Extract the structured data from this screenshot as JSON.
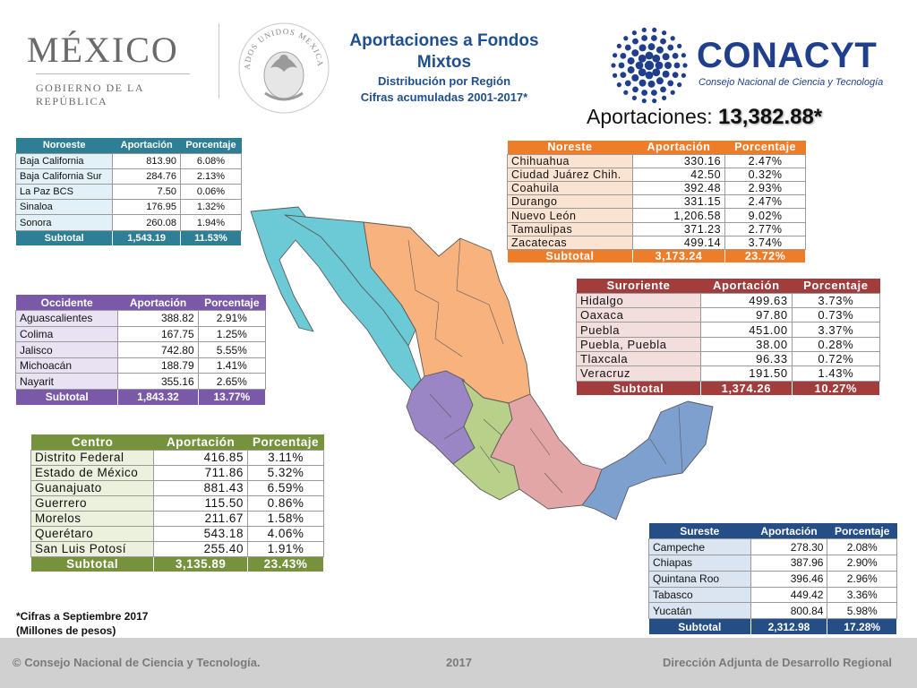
{
  "header": {
    "mexico_word": "MÉXICO",
    "mexico_sub": "GOBIERNO DE LA REPÚBLICA",
    "seal_text": "ESTADOS UNIDOS MEXICANOS",
    "title_line1": "Aportaciones a Fondos",
    "title_line2": "Mixtos",
    "subtitle_line1": "Distribución por Región",
    "subtitle_line2": "Cifras acumuladas 2001-2017*",
    "conacyt_word": "CONACYT",
    "conacyt_sub": "Consejo Nacional de Ciencia y Tecnología",
    "total_label": "Aportaciones:",
    "total_value": "13,382.88*"
  },
  "colors": {
    "noroeste": "#2e7f96",
    "noreste": "#ee7d2a",
    "occidente": "#7a5aa8",
    "suroriente": "#a23d3d",
    "centro": "#76923c",
    "sureste": "#254e86"
  },
  "tables": {
    "noroeste": {
      "headers": [
        "Noroeste",
        "Aportación",
        "Porcentaje"
      ],
      "rows": [
        [
          "Baja California",
          "813.90",
          "6.08%"
        ],
        [
          "Baja California Sur",
          "284.76",
          "2.13%"
        ],
        [
          "La Paz BCS",
          "7.50",
          "0.06%"
        ],
        [
          "Sinaloa",
          "176.95",
          "1.32%"
        ],
        [
          "Sonora",
          "260.08",
          "1.94%"
        ]
      ],
      "subtotal": [
        "Subtotal",
        "1,543.19",
        "11.53%"
      ]
    },
    "noreste": {
      "headers": [
        "Noreste",
        "Aportación",
        "Porcentaje"
      ],
      "rows": [
        [
          "Chihuahua",
          "330.16",
          "2.47%"
        ],
        [
          "Ciudad Juárez Chih.",
          "42.50",
          "0.32%"
        ],
        [
          "Coahuila",
          "392.48",
          "2.93%"
        ],
        [
          "Durango",
          "331.15",
          "2.47%"
        ],
        [
          "Nuevo León",
          "1,206.58",
          "9.02%"
        ],
        [
          "Tamaulipas",
          "371.23",
          "2.77%"
        ],
        [
          "Zacatecas",
          "499.14",
          "3.74%"
        ]
      ],
      "subtotal": [
        "Subtotal",
        "3,173.24",
        "23.72%"
      ]
    },
    "occidente": {
      "headers": [
        "Occidente",
        "Aportación",
        "Porcentaje"
      ],
      "rows": [
        [
          "Aguascalientes",
          "388.82",
          "2.91%"
        ],
        [
          "Colima",
          "167.75",
          "1.25%"
        ],
        [
          "Jalisco",
          "742.80",
          "5.55%"
        ],
        [
          "Michoacán",
          "188.79",
          "1.41%"
        ],
        [
          "Nayarit",
          "355.16",
          "2.65%"
        ]
      ],
      "subtotal": [
        "Subtotal",
        "1,843.32",
        "13.77%"
      ]
    },
    "suroriente": {
      "headers": [
        "Suroriente",
        "Aportación",
        "Porcentaje"
      ],
      "rows": [
        [
          "Hidalgo",
          "499.63",
          "3.73%"
        ],
        [
          "Oaxaca",
          "97.80",
          "0.73%"
        ],
        [
          "Puebla",
          "451.00",
          "3.37%"
        ],
        [
          "Puebla, Puebla",
          "38.00",
          "0.28%"
        ],
        [
          "Tlaxcala",
          "96.33",
          "0.72%"
        ],
        [
          "Veracruz",
          "191.50",
          "1.43%"
        ]
      ],
      "subtotal": [
        "Subtotal",
        "1,374.26",
        "10.27%"
      ]
    },
    "centro": {
      "headers": [
        "Centro",
        "Aportación",
        "Porcentaje"
      ],
      "rows": [
        [
          "Distrito Federal",
          "416.85",
          "3.11%"
        ],
        [
          "Estado de México",
          "711.86",
          "5.32%"
        ],
        [
          "Guanajuato",
          "881.43",
          "6.59%"
        ],
        [
          "Guerrero",
          "115.50",
          "0.86%"
        ],
        [
          "Morelos",
          "211.67",
          "1.58%"
        ],
        [
          "Querétaro",
          "543.18",
          "4.06%"
        ],
        [
          "San Luis Potosí",
          "255.40",
          "1.91%"
        ]
      ],
      "subtotal": [
        "Subtotal",
        "3,135.89",
        "23.43%"
      ]
    },
    "sureste": {
      "headers": [
        "Sureste",
        "Aportación",
        "Porcentaje"
      ],
      "rows": [
        [
          "Campeche",
          "278.30",
          "2.08%"
        ],
        [
          "Chiapas",
          "387.96",
          "2.90%"
        ],
        [
          "Quintana Roo",
          "396.46",
          "2.96%"
        ],
        [
          "Tabasco",
          "449.42",
          "3.36%"
        ],
        [
          "Yucatán",
          "800.84",
          "5.98%"
        ]
      ],
      "subtotal": [
        "Subtotal",
        "2,312.98",
        "17.28%"
      ]
    }
  },
  "footnote_line1": "*Cifras a Septiembre 2017",
  "footnote_line2": "(Millones de pesos)",
  "footer": {
    "copyright": "© Consejo Nacional de Ciencia y Tecnología.",
    "year": "2017",
    "direction": "Dirección Adjunta de Desarrollo Regional"
  }
}
